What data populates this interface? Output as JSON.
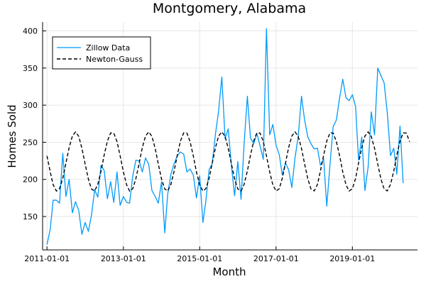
{
  "chart_data": {
    "type": "line",
    "title": "Montgomery, Alabama",
    "xlabel": "Month",
    "ylabel": "Homes Sold",
    "x_start": "2011-01",
    "x_end": "2020-07",
    "xlim": [
      "2010-11-20",
      "2020-09-15"
    ],
    "ylim": [
      105,
      412
    ],
    "xticks": [
      {
        "date": "2011-01-01",
        "label": "2011-01-01"
      },
      {
        "date": "2013-01-01",
        "label": "2013-01-01"
      },
      {
        "date": "2015-01-01",
        "label": "2015-01-01"
      },
      {
        "date": "2017-01-01",
        "label": "2017-01-01"
      },
      {
        "date": "2019-01-01",
        "label": "2019-01-01"
      }
    ],
    "yticks": [
      150,
      200,
      250,
      300,
      350,
      400
    ],
    "grid": true,
    "legend_position": "top-left",
    "series": [
      {
        "name": "Zillow Data",
        "color": "#009af9",
        "style": "solid",
        "values": [
          112,
          133,
          172,
          172,
          168,
          235,
          177,
          200,
          155,
          170,
          158,
          126,
          142,
          130,
          151,
          186,
          176,
          219,
          212,
          174,
          197,
          169,
          210,
          165,
          177,
          169,
          168,
          205,
          226,
          225,
          210,
          229,
          220,
          185,
          177,
          168,
          197,
          128,
          180,
          207,
          221,
          232,
          237,
          234,
          210,
          214,
          206,
          175,
          205,
          142,
          171,
          213,
          221,
          261,
          292,
          338,
          255,
          268,
          218,
          178,
          224,
          173,
          248,
          312,
          256,
          248,
          262,
          245,
          227,
          403,
          260,
          274,
          246,
          233,
          206,
          222,
          213,
          189,
          229,
          258,
          312,
          280,
          257,
          248,
          241,
          242,
          219,
          228,
          164,
          220,
          271,
          280,
          310,
          335,
          310,
          306,
          314,
          298,
          226,
          257,
          185,
          217,
          291,
          260,
          350,
          340,
          330,
          290,
          232,
          242,
          207,
          272,
          195
        ]
      },
      {
        "name": "Newton-Gauss",
        "color": "#000000",
        "style": "dashed",
        "model": {
          "base": 224,
          "amplitude": 40,
          "period_months": 11.5,
          "phase": 2.95
        }
      }
    ]
  }
}
